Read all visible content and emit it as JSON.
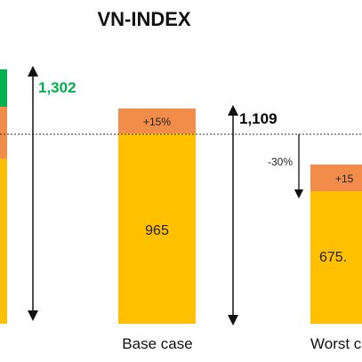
{
  "chart_data": {
    "type": "bar",
    "title": "VN-INDEX",
    "reference_level": 1109,
    "colors": {
      "base": "#FFC000",
      "increment": "#F4A460",
      "increment_dark": "#F28C4A",
      "best_accent": "#00B050",
      "total_best": "#00B050",
      "total_default": "#000000"
    },
    "bars": [
      {
        "category": "",
        "base": 965,
        "base_label": "",
        "increment_label": "",
        "total": 1302,
        "total_label": "1,302"
      },
      {
        "category": "Base case",
        "base": 965,
        "base_label": "965",
        "increment": 144,
        "increment_label": "+15%",
        "total": 1109,
        "total_label": "1,109"
      },
      {
        "category": "Worst c",
        "base": 675.5,
        "base_label": "675.",
        "increment": 101,
        "increment_label": "+15",
        "change_label": "-30%"
      }
    ]
  }
}
